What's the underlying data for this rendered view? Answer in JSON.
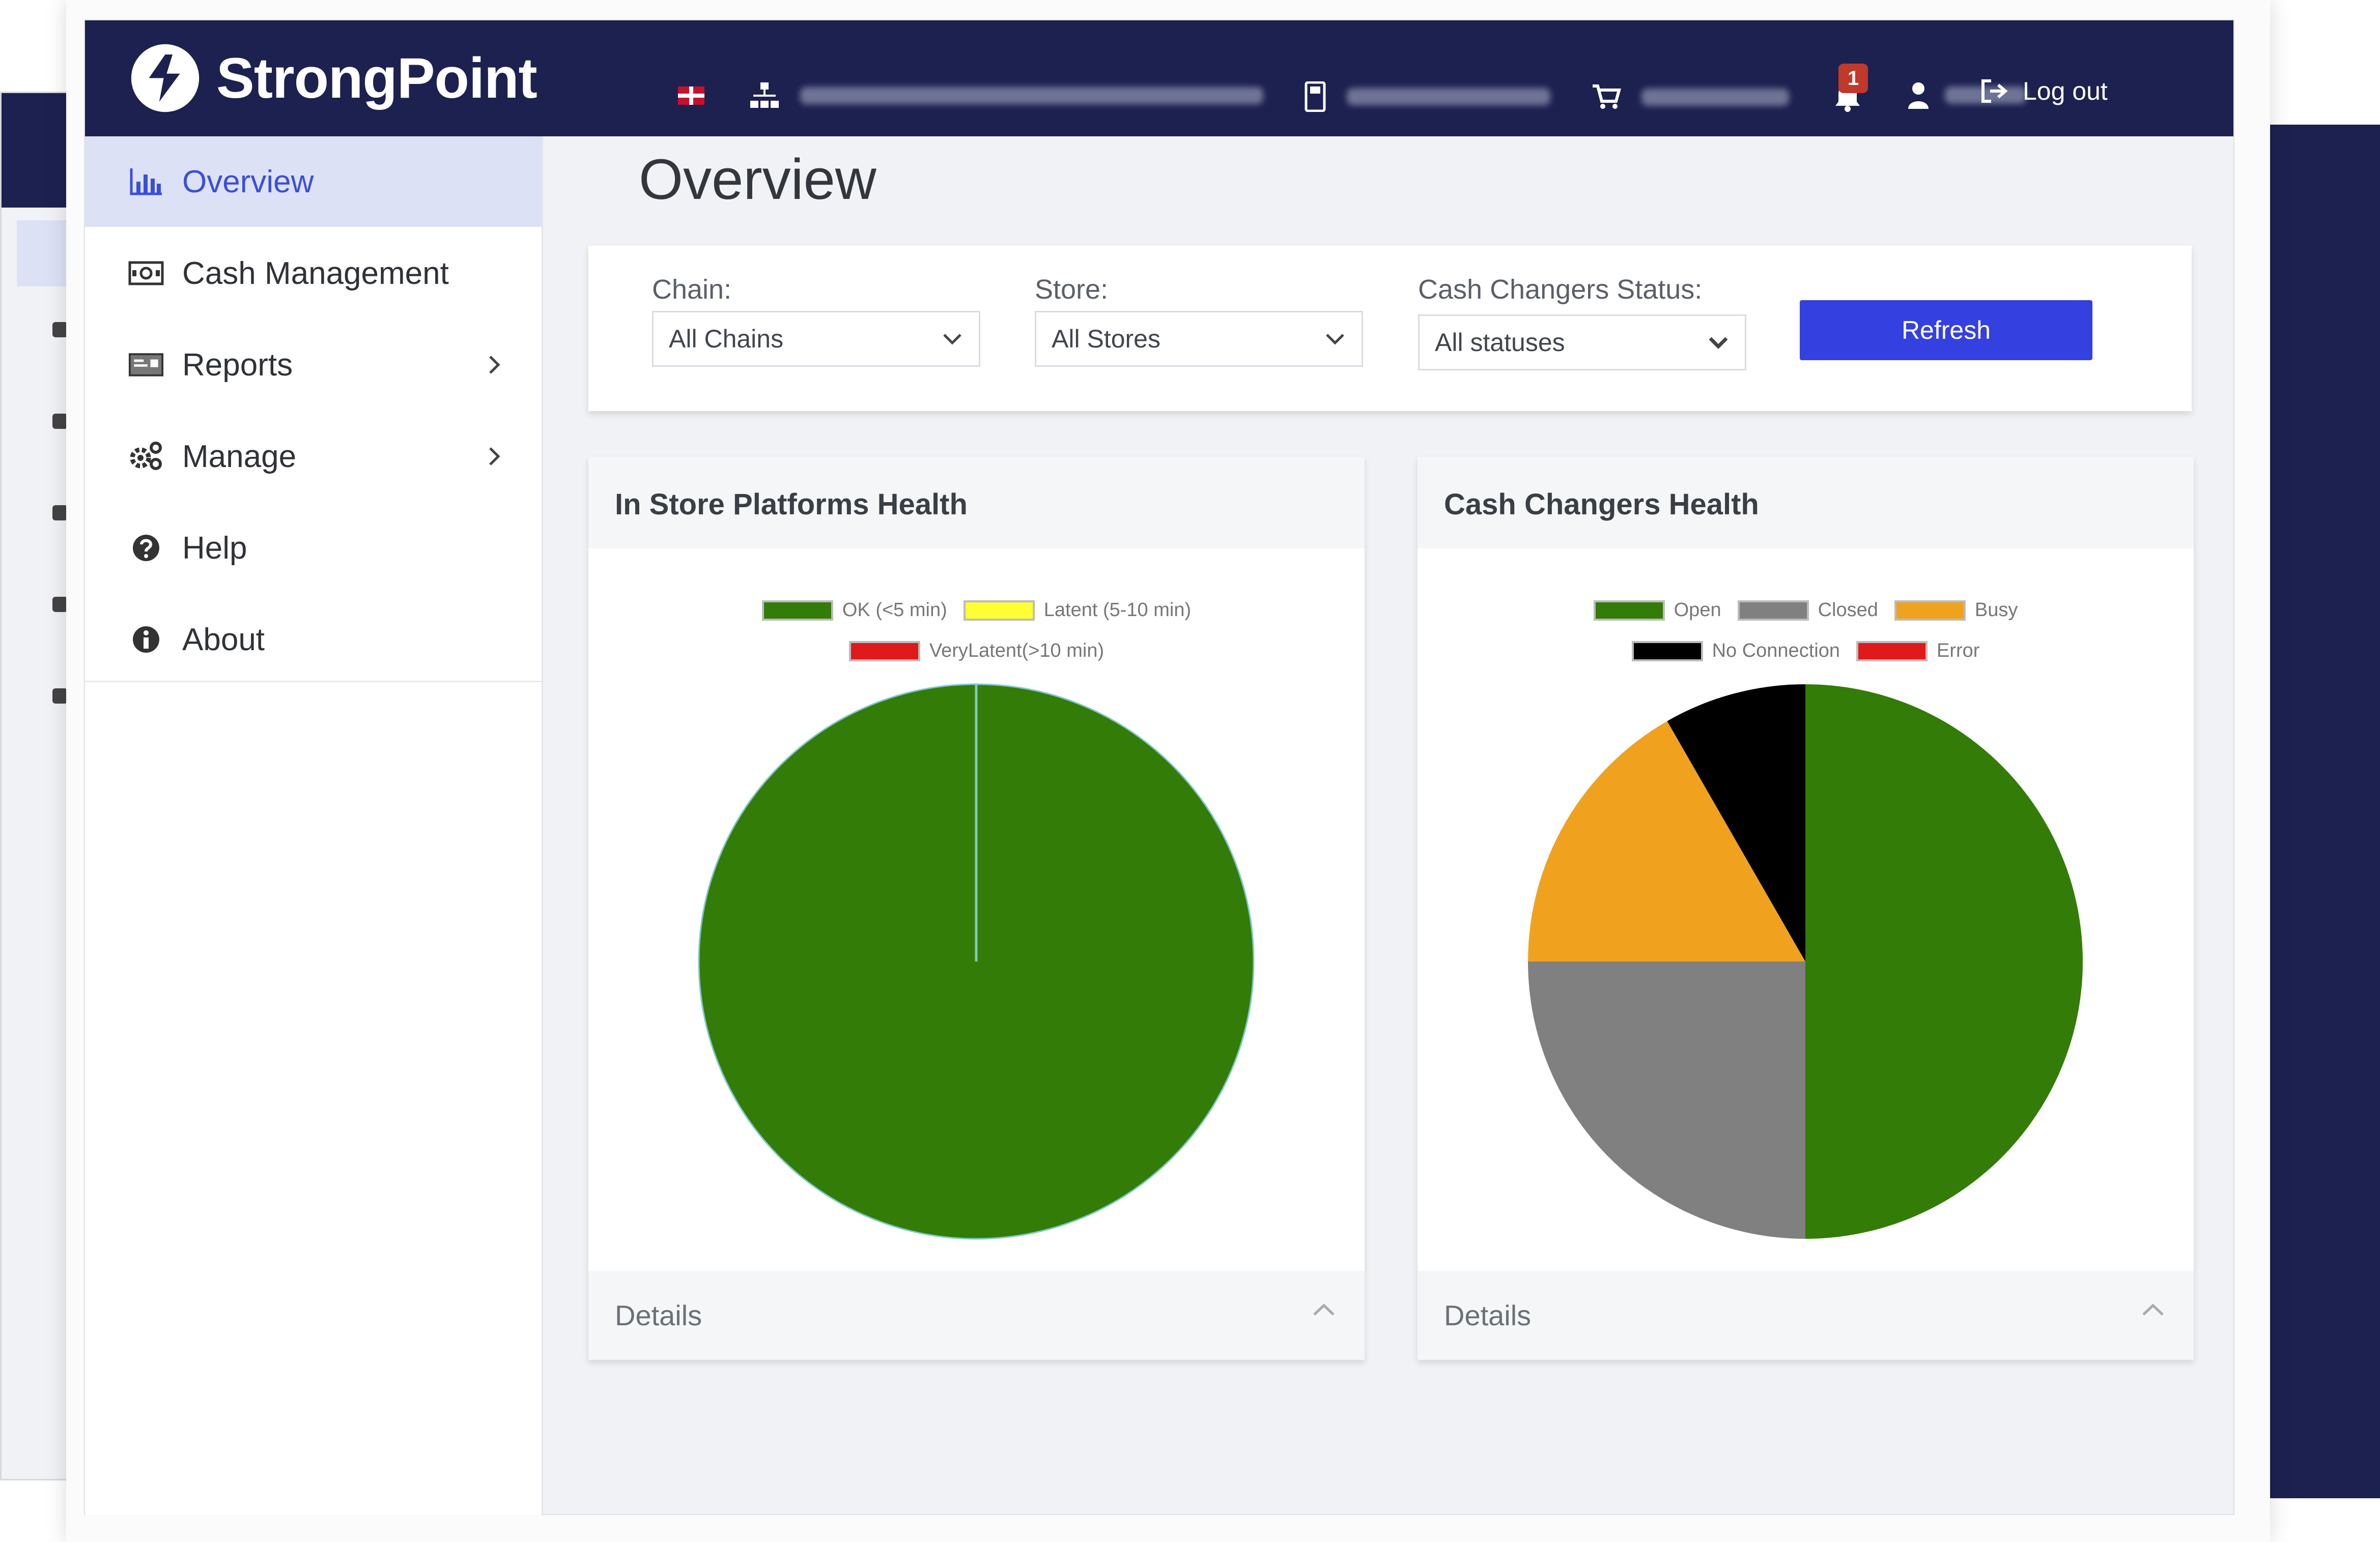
{
  "app": {
    "logo_text": "StrongPoint"
  },
  "header": {
    "logout_label": "Log out",
    "notification_count": "1",
    "icons": [
      "flag-icon",
      "organization-icon",
      "device-icon",
      "cart-icon",
      "bell-icon",
      "user-icon",
      "logout-icon"
    ]
  },
  "sidebar": {
    "items": [
      {
        "label": "Overview",
        "icon": "bar-chart-icon",
        "active": true
      },
      {
        "label": "Cash Management",
        "icon": "cash-icon"
      },
      {
        "label": "Reports",
        "icon": "report-icon",
        "has_submenu": true
      },
      {
        "label": "Manage",
        "icon": "gears-icon",
        "has_submenu": true
      },
      {
        "label": "Help",
        "icon": "question-icon"
      },
      {
        "label": "About",
        "icon": "info-icon"
      }
    ]
  },
  "page": {
    "title": "Overview"
  },
  "filters": {
    "chain": {
      "label": "Chain:",
      "value": "All Chains"
    },
    "store": {
      "label": "Store:",
      "value": "All Stores"
    },
    "status": {
      "label": "Cash Changers Status:",
      "value": "All statuses"
    },
    "refresh_label": "Refresh"
  },
  "panels": {
    "platforms": {
      "title": "In Store Platforms Health",
      "legend": [
        {
          "label": "OK (<5 min)",
          "color": "#337c07"
        },
        {
          "label": "Latent (5-10 min)",
          "color": "#ffff33"
        },
        {
          "label": "VeryLatent(>10 min)",
          "color": "#e01a1a"
        }
      ],
      "details_label": "Details"
    },
    "changers": {
      "title": "Cash Changers Health",
      "legend": [
        {
          "label": "Open",
          "color": "#337c07"
        },
        {
          "label": "Closed",
          "color": "#808080"
        },
        {
          "label": "Busy",
          "color": "#f0a21e"
        },
        {
          "label": "No Connection",
          "color": "#000000"
        },
        {
          "label": "Error",
          "color": "#e01a1a"
        }
      ],
      "details_label": "Details"
    }
  },
  "chart_data": [
    {
      "type": "pie",
      "title": "In Store Platforms Health",
      "categories": [
        "OK (<5 min)",
        "Latent (5-10 min)",
        "VeryLatent(>10 min)"
      ],
      "values": [
        1,
        0,
        0
      ],
      "colors": [
        "#337c07",
        "#ffff33",
        "#e01a1a"
      ]
    },
    {
      "type": "pie",
      "title": "Cash Changers Health",
      "categories": [
        "Open",
        "Closed",
        "Busy",
        "No Connection",
        "Error"
      ],
      "values": [
        0.5,
        0.25,
        0.167,
        0.083,
        0
      ],
      "colors": [
        "#337c07",
        "#808080",
        "#f0a21e",
        "#000000",
        "#e01a1a"
      ]
    }
  ]
}
